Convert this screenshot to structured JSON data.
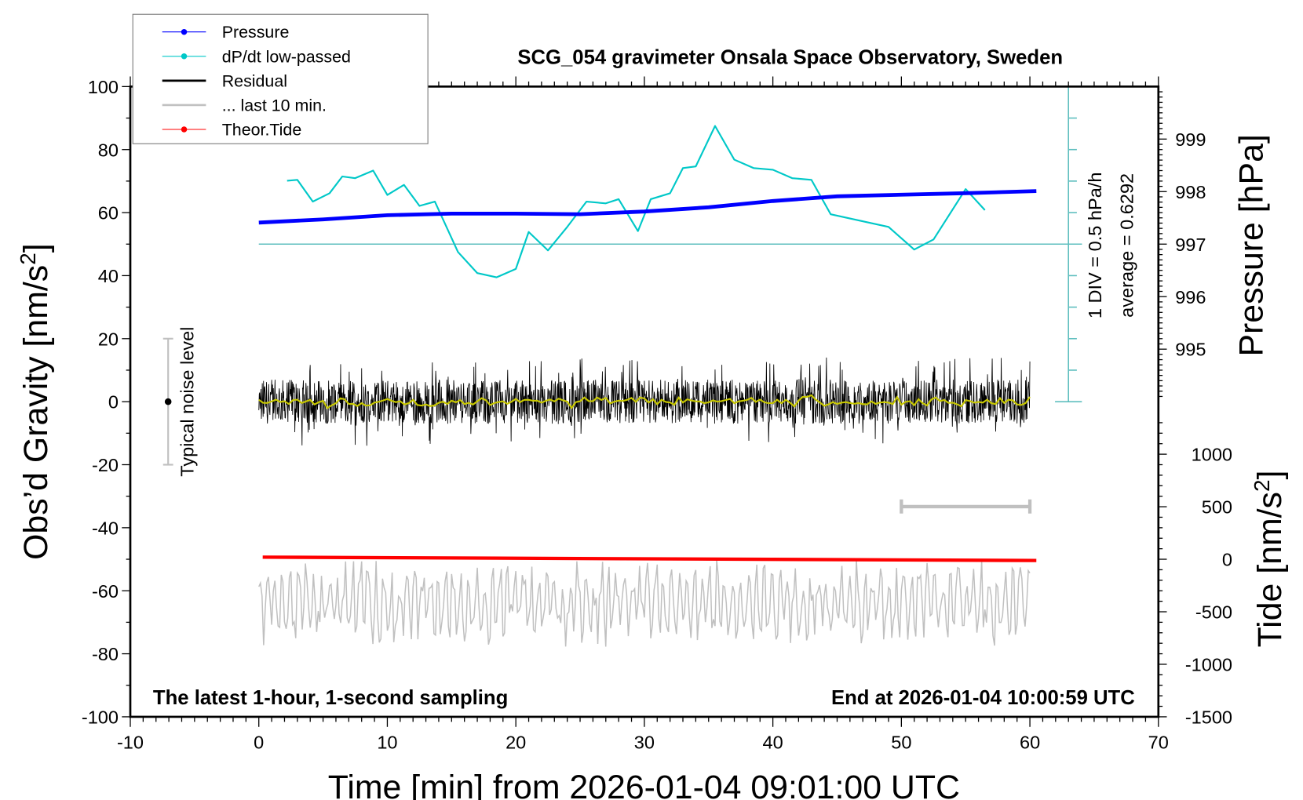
{
  "chart_data": {
    "type": "line",
    "title": "SCG_054 gravimeter Onsala Space Observatory, Sweden",
    "xlabel": "Time [min] from 2026-01-04 09:01:00 UTC",
    "ylabel": "Obs’d Gravity [nm/s²]",
    "ylabel_main": "Obs’d Gravity [nm/s",
    "ylabel_sup": "2",
    "ylabel_end": "]",
    "y2label": "Pressure [hPa]",
    "y3label_main": "Tide [nm/s",
    "y3label_sup": "2",
    "y3label_end": "]",
    "xlim": [
      -10,
      70
    ],
    "ylim": [
      -100,
      100
    ],
    "x_ticks": [
      "-10",
      "0",
      "10",
      "20",
      "30",
      "40",
      "50",
      "60",
      "70"
    ],
    "y_ticks": [
      "100",
      "80",
      "60",
      "40",
      "20",
      "0",
      "-20",
      "-40",
      "-60",
      "-80",
      "-100"
    ],
    "pressure_ticks": [
      "999",
      "998",
      "997",
      "996",
      "995"
    ],
    "tide_ticks": [
      "1000",
      "500",
      "0",
      "-500",
      "-1000",
      "-1500"
    ],
    "footer_left": "The latest 1-hour, 1-second sampling",
    "footer_right": "End at 2026-01-04 10:00:59 UTC",
    "dpdt_div_label": "1 DIV = 0.5 hPa/h",
    "dpdt_average_label": "average = 0.6292",
    "noise_label": "Typical noise level",
    "legend_position": "top-left",
    "legend": [
      {
        "label": "Pressure",
        "color": "#0000ff",
        "style": "line-dot"
      },
      {
        "label": "dP/dt low-passed",
        "color": "#00c8c8",
        "style": "line-dot"
      },
      {
        "label": "Residual",
        "color": "#000000",
        "style": "line"
      },
      {
        "label": "... last 10 min.",
        "color": "#c0c0c0",
        "style": "line"
      },
      {
        "label": "Theor.Tide",
        "color": "#ff0000",
        "style": "line-dot"
      }
    ],
    "series": [
      {
        "name": "Pressure",
        "unit": "hPa",
        "color": "#0000ff",
        "x": [
          0,
          5,
          10,
          15,
          20,
          25,
          30,
          35,
          40,
          45,
          50,
          55,
          60.5
        ],
        "values": [
          997.41,
          997.47,
          997.55,
          997.58,
          997.58,
          997.57,
          997.62,
          997.7,
          997.82,
          997.91,
          997.94,
          997.97,
          998.01
        ]
      },
      {
        "name": "dP/dt low-passed",
        "unit": "hPa/h",
        "color": "#00c8c8",
        "x": [
          2.2,
          3,
          4.2,
          5.5,
          6.5,
          7.5,
          8.9,
          10,
          11.3,
          12.5,
          13.7,
          15.5,
          17,
          18.5,
          20,
          21,
          22.5,
          24,
          25.5,
          27,
          28,
          29.5,
          30.5,
          32,
          33,
          34,
          35.5,
          37,
          38.5,
          40,
          41.5,
          43,
          44.5,
          46,
          47.5,
          49,
          51,
          52.5,
          55,
          56.5
        ],
        "values": [
          1.635,
          1.649,
          1.304,
          1.436,
          1.703,
          1.676,
          1.796,
          1.409,
          1.569,
          1.236,
          1.304,
          0.504,
          0.169,
          0.102,
          0.236,
          0.822,
          0.529,
          0.902,
          1.304,
          1.276,
          1.342,
          0.836,
          1.342,
          1.436,
          1.836,
          1.862,
          2.504,
          1.969,
          1.836,
          1.809,
          1.676,
          1.649,
          1.102,
          1.036,
          0.969,
          0.902,
          0.542,
          0.702,
          1.502,
          1.169
        ]
      },
      {
        "name": "Residual",
        "unit": "nm/s²",
        "color": "#000000",
        "x_range": [
          0,
          60
        ],
        "range": [
          -19,
          20
        ]
      },
      {
        "name": "... last 10 min.",
        "unit": "nm/s²",
        "color": "#c0c0c0",
        "x_range": [
          0,
          60
        ]
      },
      {
        "name": "Theor.Tide",
        "unit": "nm/s²",
        "color": "#ff0000",
        "x": [
          0.3,
          60.5
        ],
        "values": [
          20,
          -12
        ]
      }
    ],
    "smoothed_residual_color": "#c8c800",
    "dpdt_average": 0.6292,
    "dpdt_per_div": 0.5
  }
}
